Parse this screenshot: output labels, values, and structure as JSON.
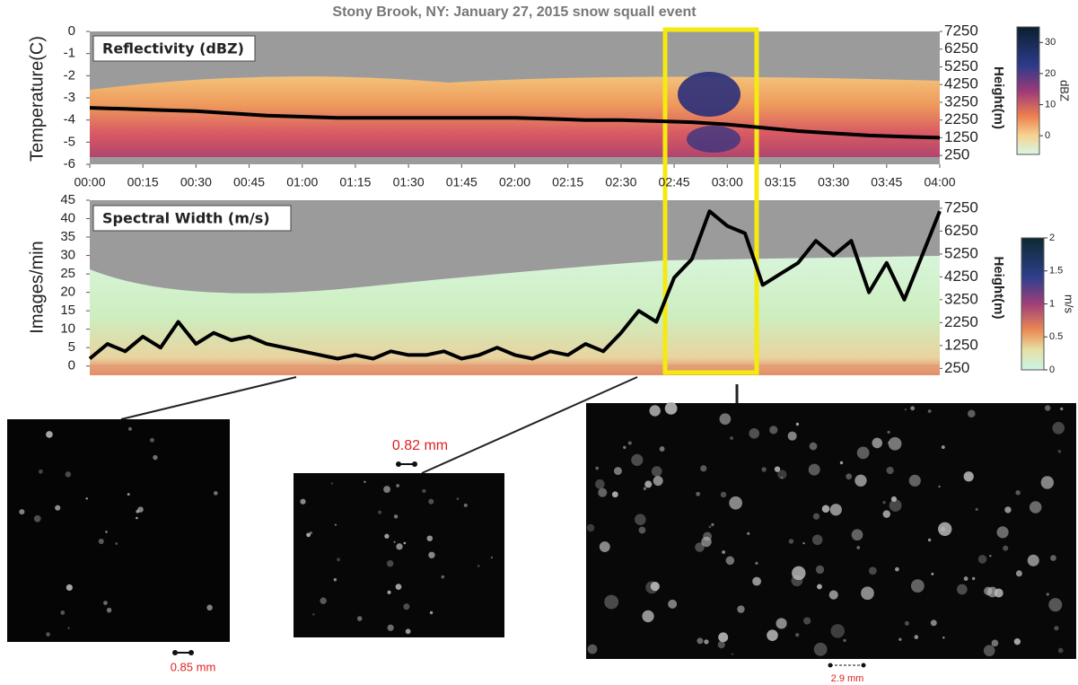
{
  "chart_data": [
    {
      "type": "line",
      "title": "Stony Brook, NY: January 27, 2015 snow squall event",
      "panel_label": "Reflectivity (dBZ)",
      "y_label": "Temperature(C)",
      "y2_label": "Height(m)",
      "xlim": [
        0,
        240
      ],
      "xticks": [
        {
          "value": 0,
          "label": "00:00"
        },
        {
          "value": 15,
          "label": "00:15"
        },
        {
          "value": 30,
          "label": "00:30"
        },
        {
          "value": 45,
          "label": "00:45"
        },
        {
          "value": 60,
          "label": "01:00"
        },
        {
          "value": 75,
          "label": "01:15"
        },
        {
          "value": 90,
          "label": "01:30"
        },
        {
          "value": 105,
          "label": "01:45"
        },
        {
          "value": 120,
          "label": "02:00"
        },
        {
          "value": 135,
          "label": "02:15"
        },
        {
          "value": 150,
          "label": "02:30"
        },
        {
          "value": 165,
          "label": "02:45"
        },
        {
          "value": 180,
          "label": "03:00"
        },
        {
          "value": 195,
          "label": "03:15"
        },
        {
          "value": 210,
          "label": "03:30"
        },
        {
          "value": 225,
          "label": "03:45"
        },
        {
          "value": 240,
          "label": "04:00"
        }
      ],
      "ylim": [
        -6,
        0
      ],
      "yticks": [
        0,
        -1,
        -2,
        -3,
        -4,
        -5,
        -6
      ],
      "y2lim": [
        -250,
        7250
      ],
      "y2ticks": [
        7250,
        6250,
        5250,
        4250,
        3250,
        2250,
        1250,
        250
      ],
      "series": [
        {
          "color": "#000000",
          "x": [
            0,
            10,
            20,
            30,
            40,
            50,
            60,
            70,
            80,
            90,
            100,
            110,
            120,
            130,
            140,
            150,
            160,
            170,
            180,
            190,
            200,
            210,
            220,
            230,
            240
          ],
          "values": [
            -3.45,
            -3.5,
            -3.55,
            -3.6,
            -3.7,
            -3.8,
            -3.85,
            -3.9,
            -3.9,
            -3.9,
            -3.9,
            -3.9,
            -3.9,
            -3.95,
            -4.0,
            -4.0,
            -4.05,
            -4.1,
            -4.2,
            -4.35,
            -4.5,
            -4.6,
            -4.7,
            -4.75,
            -4.8
          ]
        }
      ],
      "colorbar": {
        "label": "dBZ",
        "lim": [
          -6,
          35
        ],
        "ticks": [
          0,
          10,
          20,
          30
        ]
      }
    },
    {
      "type": "line",
      "panel_label": "Spectral Width (m/s)",
      "y_label": "Images/min",
      "y2_label": "Height(m)",
      "xlim": [
        0,
        240
      ],
      "ylim": [
        -2.5,
        45
      ],
      "yticks": [
        0,
        5,
        10,
        15,
        20,
        25,
        30,
        35,
        40,
        45
      ],
      "y2lim": [
        -50,
        7600
      ],
      "y2ticks": [
        7250,
        6250,
        5250,
        4250,
        3250,
        2250,
        1250,
        250
      ],
      "series": [
        {
          "color": "#000000",
          "x": [
            0,
            5,
            10,
            15,
            20,
            25,
            30,
            35,
            40,
            45,
            50,
            55,
            60,
            65,
            70,
            75,
            80,
            85,
            90,
            95,
            100,
            105,
            110,
            115,
            120,
            125,
            130,
            135,
            140,
            145,
            150,
            155,
            160,
            165,
            170,
            175,
            180,
            185,
            190,
            195,
            200,
            205,
            210,
            215,
            220,
            225,
            230,
            235,
            240
          ],
          "values": [
            2,
            6,
            4,
            8,
            5,
            12,
            6,
            9,
            7,
            8,
            6,
            5,
            4,
            3,
            2,
            3,
            2,
            4,
            3,
            3,
            4,
            2,
            3,
            5,
            3,
            2,
            4,
            3,
            6,
            4,
            9,
            15,
            12,
            24,
            29,
            42,
            38,
            36,
            22,
            25,
            28,
            34,
            30,
            34,
            20,
            28,
            18,
            30,
            42
          ]
        }
      ],
      "colorbar": {
        "label": "m/s",
        "lim": [
          0,
          2
        ],
        "ticks": [
          0,
          0.5,
          1,
          1.5,
          2
        ]
      }
    }
  ],
  "images": [
    {
      "scale_label": "0.85 mm"
    },
    {
      "scale_label": "0.82 mm"
    },
    {
      "scale_label": "2.9 mm"
    }
  ]
}
